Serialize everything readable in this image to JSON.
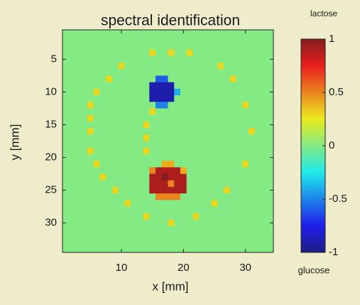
{
  "chart_data": {
    "type": "heatmap",
    "title": "spectral identification",
    "x_label": "x [mm]",
    "y_label": "y [mm]",
    "x": [
      1,
      2,
      3,
      4,
      5,
      6,
      7,
      8,
      9,
      10,
      11,
      12,
      13,
      14,
      15,
      16,
      17,
      18,
      19,
      20,
      21,
      22,
      23,
      24,
      25,
      26,
      27,
      28,
      29,
      30,
      31,
      32,
      33,
      34
    ],
    "y": [
      1,
      2,
      3,
      4,
      5,
      6,
      7,
      8,
      9,
      10,
      11,
      12,
      13,
      14,
      15,
      16,
      17,
      18,
      19,
      20,
      21,
      22,
      23,
      24,
      25,
      26,
      27,
      28,
      29,
      30,
      31,
      32,
      33,
      34
    ],
    "xlim": [
      0.5,
      34.5
    ],
    "ylim": [
      0.5,
      34.5
    ],
    "y_reversed": true,
    "xticks": [
      10,
      20,
      30
    ],
    "yticks": [
      5,
      10,
      15,
      20,
      25,
      30
    ],
    "colormap": "jet",
    "clim": [
      -1,
      1
    ],
    "cticks": [
      -1,
      -0.5,
      0,
      0.5,
      1
    ],
    "colorbar_top_label": "lactose",
    "colorbar_bottom_label": "glucose",
    "values": [
      [
        0,
        0,
        0,
        0,
        0,
        0,
        0,
        0,
        0,
        0,
        0,
        0,
        0,
        0,
        0,
        0,
        0,
        0,
        0,
        0,
        0,
        0,
        0,
        0,
        0,
        0,
        0,
        0,
        0,
        0,
        0,
        0,
        0,
        0
      ],
      [
        0,
        0,
        0,
        0,
        0,
        0,
        0,
        0,
        0,
        0,
        0,
        0,
        0,
        0,
        0,
        0,
        0,
        0,
        0,
        0,
        0,
        0,
        0,
        0,
        0,
        0,
        0,
        0,
        0,
        0,
        0,
        0,
        0,
        0
      ],
      [
        0,
        0,
        0,
        0,
        0,
        0,
        0,
        0,
        0,
        0,
        0,
        0,
        0,
        0,
        0,
        0,
        0,
        0,
        0,
        0,
        0,
        0,
        0,
        0,
        0,
        0,
        0,
        0,
        0,
        0,
        0,
        0,
        0,
        0
      ],
      [
        0,
        0,
        0,
        0,
        0,
        0,
        0,
        0,
        0,
        0,
        0,
        0,
        0,
        0,
        0.3,
        0,
        0,
        0.3,
        0,
        0,
        0.3,
        0,
        0,
        0,
        0,
        0,
        0,
        0,
        0,
        0,
        0,
        0,
        0,
        0
      ],
      [
        0,
        0,
        0,
        0,
        0,
        0,
        0,
        0,
        0,
        0,
        0,
        0,
        0,
        0,
        0,
        0,
        0,
        0,
        0,
        0,
        0,
        0,
        0,
        0,
        0,
        0,
        0,
        0,
        0,
        0,
        0,
        0,
        0,
        0
      ],
      [
        0,
        0,
        0,
        0,
        0,
        0,
        0,
        0,
        0,
        0.3,
        0,
        0,
        0,
        0,
        0,
        0,
        0,
        0,
        0,
        0,
        0,
        0,
        0,
        0,
        0,
        0.3,
        0,
        0,
        0,
        0,
        0,
        0,
        0,
        0
      ],
      [
        0,
        0,
        0,
        0,
        0,
        0,
        0,
        0,
        0,
        0,
        0,
        0,
        0,
        0,
        0,
        0,
        0,
        0,
        0,
        0,
        0,
        0,
        0,
        0,
        0,
        0,
        0,
        0,
        0,
        0,
        0,
        0,
        0,
        0
      ],
      [
        0,
        0,
        0,
        0,
        0,
        0,
        0,
        0.3,
        0,
        0,
        0,
        0,
        0,
        0,
        0,
        -0.6,
        -0.6,
        0,
        0,
        0,
        0,
        0,
        0,
        0,
        0,
        0,
        0,
        0.3,
        0,
        0,
        0,
        0,
        0,
        0
      ],
      [
        0,
        0,
        0,
        0,
        0,
        0,
        0,
        0,
        0,
        0,
        0,
        0,
        0,
        0,
        -0.9,
        -0.9,
        -0.9,
        -0.9,
        0,
        0,
        0,
        0,
        0,
        0,
        0,
        0,
        0,
        0,
        0,
        0,
        0,
        0,
        0,
        0
      ],
      [
        0,
        0,
        0,
        0,
        0,
        0.3,
        0,
        0,
        0,
        0,
        0,
        0,
        0,
        0,
        -0.9,
        -0.9,
        -0.9,
        -0.9,
        -0.4,
        0,
        0,
        0,
        0,
        0,
        0,
        0,
        0,
        0,
        0,
        0,
        0,
        0,
        0,
        0
      ],
      [
        0,
        0,
        0,
        0,
        0,
        0,
        0,
        0,
        0,
        0,
        0,
        0,
        0,
        0,
        -0.9,
        -0.9,
        -0.9,
        -0.9,
        0,
        0,
        0,
        0,
        0,
        0,
        0,
        0,
        0,
        0,
        0,
        0,
        0,
        0,
        0,
        0
      ],
      [
        0,
        0,
        0,
        0,
        0.3,
        0,
        0,
        0,
        0,
        0,
        0,
        0,
        0,
        0,
        0,
        -0.5,
        -0.5,
        0,
        0,
        0,
        0,
        0,
        0,
        0,
        0,
        0,
        0,
        0,
        0,
        0.3,
        0,
        0,
        0,
        0
      ],
      [
        0,
        0,
        0,
        0,
        0,
        0,
        0,
        0,
        0,
        0,
        0,
        0,
        0,
        0,
        0.3,
        0,
        0,
        0,
        0,
        0,
        0,
        0,
        0,
        0,
        0,
        0,
        0,
        0,
        0,
        0,
        0,
        0,
        0,
        0
      ],
      [
        0,
        0,
        0,
        0,
        0.3,
        0,
        0,
        0,
        0,
        0,
        0,
        0,
        0,
        0,
        0,
        0,
        0,
        0,
        0,
        0,
        0,
        0,
        0,
        0,
        0,
        0,
        0,
        0,
        0,
        0,
        0,
        0,
        0,
        0
      ],
      [
        0,
        0,
        0,
        0,
        0,
        0,
        0,
        0,
        0,
        0,
        0,
        0,
        0,
        0.3,
        0,
        0,
        0,
        0,
        0,
        0,
        0,
        0,
        0,
        0,
        0,
        0,
        0,
        0,
        0,
        0,
        0,
        0,
        0,
        0
      ],
      [
        0,
        0,
        0,
        0,
        0.3,
        0,
        0,
        0,
        0,
        0,
        0,
        0,
        0,
        0,
        0,
        0,
        0,
        0,
        0,
        0,
        0,
        0,
        0,
        0,
        0,
        0,
        0,
        0,
        0,
        0,
        0.3,
        0,
        0,
        0
      ],
      [
        0,
        0,
        0,
        0,
        0,
        0,
        0,
        0,
        0,
        0,
        0,
        0,
        0,
        0.3,
        0,
        0,
        0,
        0,
        0,
        0,
        0,
        0,
        0,
        0,
        0,
        0,
        0,
        0,
        0,
        0,
        0,
        0,
        0,
        0
      ],
      [
        0,
        0,
        0,
        0,
        0,
        0,
        0,
        0,
        0,
        0,
        0,
        0,
        0,
        0,
        0,
        0,
        0,
        0,
        0,
        0,
        0,
        0,
        0,
        0,
        0,
        0,
        0,
        0,
        0,
        0,
        0,
        0,
        0,
        0
      ],
      [
        0,
        0,
        0,
        0,
        0.3,
        0,
        0,
        0,
        0,
        0,
        0,
        0,
        0,
        0.3,
        0,
        0,
        0,
        0,
        0,
        0,
        0,
        0,
        0,
        0,
        0,
        0,
        0,
        0,
        0,
        0,
        0,
        0,
        0,
        0
      ],
      [
        0,
        0,
        0,
        0,
        0,
        0,
        0,
        0,
        0,
        0,
        0,
        0,
        0,
        0,
        0,
        0,
        0,
        0,
        0,
        0,
        0,
        0,
        0,
        0,
        0,
        0,
        0,
        0,
        0,
        0,
        0,
        0,
        0,
        0
      ],
      [
        0,
        0,
        0,
        0,
        0,
        0.3,
        0,
        0,
        0,
        0,
        0,
        0,
        0,
        0,
        0,
        0,
        0.4,
        0.4,
        0,
        0,
        0,
        0,
        0,
        0,
        0,
        0,
        0,
        0,
        0,
        0.3,
        0,
        0,
        0,
        0
      ],
      [
        0,
        0,
        0,
        0,
        0,
        0,
        0,
        0,
        0,
        0,
        0,
        0,
        0,
        0,
        0.5,
        0.9,
        0.9,
        0.9,
        0.9,
        0.4,
        0,
        0,
        0,
        0,
        0,
        0,
        0,
        0,
        0,
        0,
        0,
        0,
        0,
        0
      ],
      [
        0,
        0,
        0,
        0,
        0,
        0,
        0.3,
        0,
        0,
        0,
        0,
        0,
        0,
        0,
        0.9,
        0.9,
        1,
        0.9,
        0.9,
        0.9,
        0,
        0,
        0,
        0,
        0,
        0,
        0,
        0,
        0,
        0,
        0,
        0,
        0,
        0
      ],
      [
        0,
        0,
        0,
        0,
        0,
        0,
        0,
        0,
        0,
        0,
        0,
        0,
        0,
        0,
        0.9,
        0.9,
        0.9,
        0.5,
        0.9,
        0.9,
        0,
        0,
        0,
        0,
        0,
        0,
        0,
        0,
        0,
        0,
        0,
        0,
        0,
        0
      ],
      [
        0,
        0,
        0,
        0,
        0,
        0,
        0,
        0,
        0.3,
        0,
        0,
        0,
        0,
        0,
        0.9,
        0.9,
        0.9,
        0.9,
        0.9,
        0.9,
        0,
        0,
        0,
        0,
        0,
        0,
        0.3,
        0,
        0,
        0,
        0,
        0,
        0,
        0
      ],
      [
        0,
        0,
        0,
        0,
        0,
        0,
        0,
        0,
        0,
        0,
        0,
        0,
        0,
        0,
        0,
        0.5,
        0.5,
        0.5,
        0.5,
        0,
        0,
        0,
        0,
        0,
        0,
        0,
        0,
        0,
        0,
        0,
        0,
        0,
        0,
        0
      ],
      [
        0,
        0,
        0,
        0,
        0,
        0,
        0,
        0,
        0,
        0,
        0.3,
        0,
        0,
        0,
        0,
        0,
        0,
        0,
        0,
        0,
        0,
        0,
        0,
        0,
        0.3,
        0,
        0,
        0,
        0,
        0,
        0,
        0,
        0,
        0
      ],
      [
        0,
        0,
        0,
        0,
        0,
        0,
        0,
        0,
        0,
        0,
        0,
        0,
        0,
        0,
        0,
        0,
        0,
        0,
        0,
        0,
        0,
        0,
        0,
        0,
        0,
        0,
        0,
        0,
        0,
        0,
        0,
        0,
        0,
        0
      ],
      [
        0,
        0,
        0,
        0,
        0,
        0,
        0,
        0,
        0,
        0,
        0,
        0,
        0,
        0.3,
        0,
        0,
        0,
        0,
        0,
        0,
        0,
        0.3,
        0,
        0,
        0,
        0,
        0,
        0,
        0,
        0,
        0,
        0,
        0,
        0
      ],
      [
        0,
        0,
        0,
        0,
        0,
        0,
        0,
        0,
        0,
        0,
        0,
        0,
        0,
        0,
        0,
        0,
        0,
        0.3,
        0,
        0,
        0,
        0,
        0,
        0,
        0,
        0,
        0,
        0,
        0,
        0,
        0,
        0,
        0,
        0
      ],
      [
        0,
        0,
        0,
        0,
        0,
        0,
        0,
        0,
        0,
        0,
        0,
        0,
        0,
        0,
        0,
        0,
        0,
        0,
        0,
        0,
        0,
        0,
        0,
        0,
        0,
        0,
        0,
        0,
        0,
        0,
        0,
        0,
        0,
        0
      ],
      [
        0,
        0,
        0,
        0,
        0,
        0,
        0,
        0,
        0,
        0,
        0,
        0,
        0,
        0,
        0,
        0,
        0,
        0,
        0,
        0,
        0,
        0,
        0,
        0,
        0,
        0,
        0,
        0,
        0,
        0,
        0,
        0,
        0,
        0
      ],
      [
        0,
        0,
        0,
        0,
        0,
        0,
        0,
        0,
        0,
        0,
        0,
        0,
        0,
        0,
        0,
        0,
        0,
        0,
        0,
        0,
        0,
        0,
        0,
        0,
        0,
        0,
        0,
        0,
        0,
        0,
        0,
        0,
        0,
        0
      ],
      [
        0,
        0,
        0,
        0,
        0,
        0,
        0,
        0,
        0,
        0,
        0,
        0,
        0,
        0,
        0,
        0,
        0,
        0,
        0,
        0,
        0,
        0,
        0,
        0,
        0,
        0,
        0,
        0,
        0,
        0,
        0,
        0,
        0,
        0
      ]
    ]
  }
}
